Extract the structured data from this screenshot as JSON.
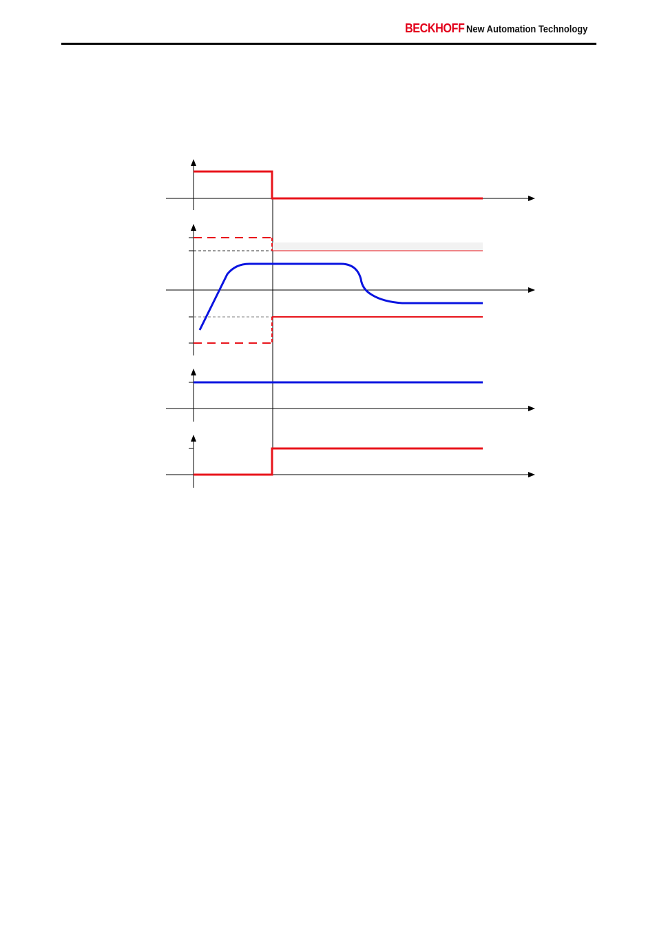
{
  "header": {
    "brand": "BECKHOFF",
    "tagline": "New Automation Technology"
  }
}
